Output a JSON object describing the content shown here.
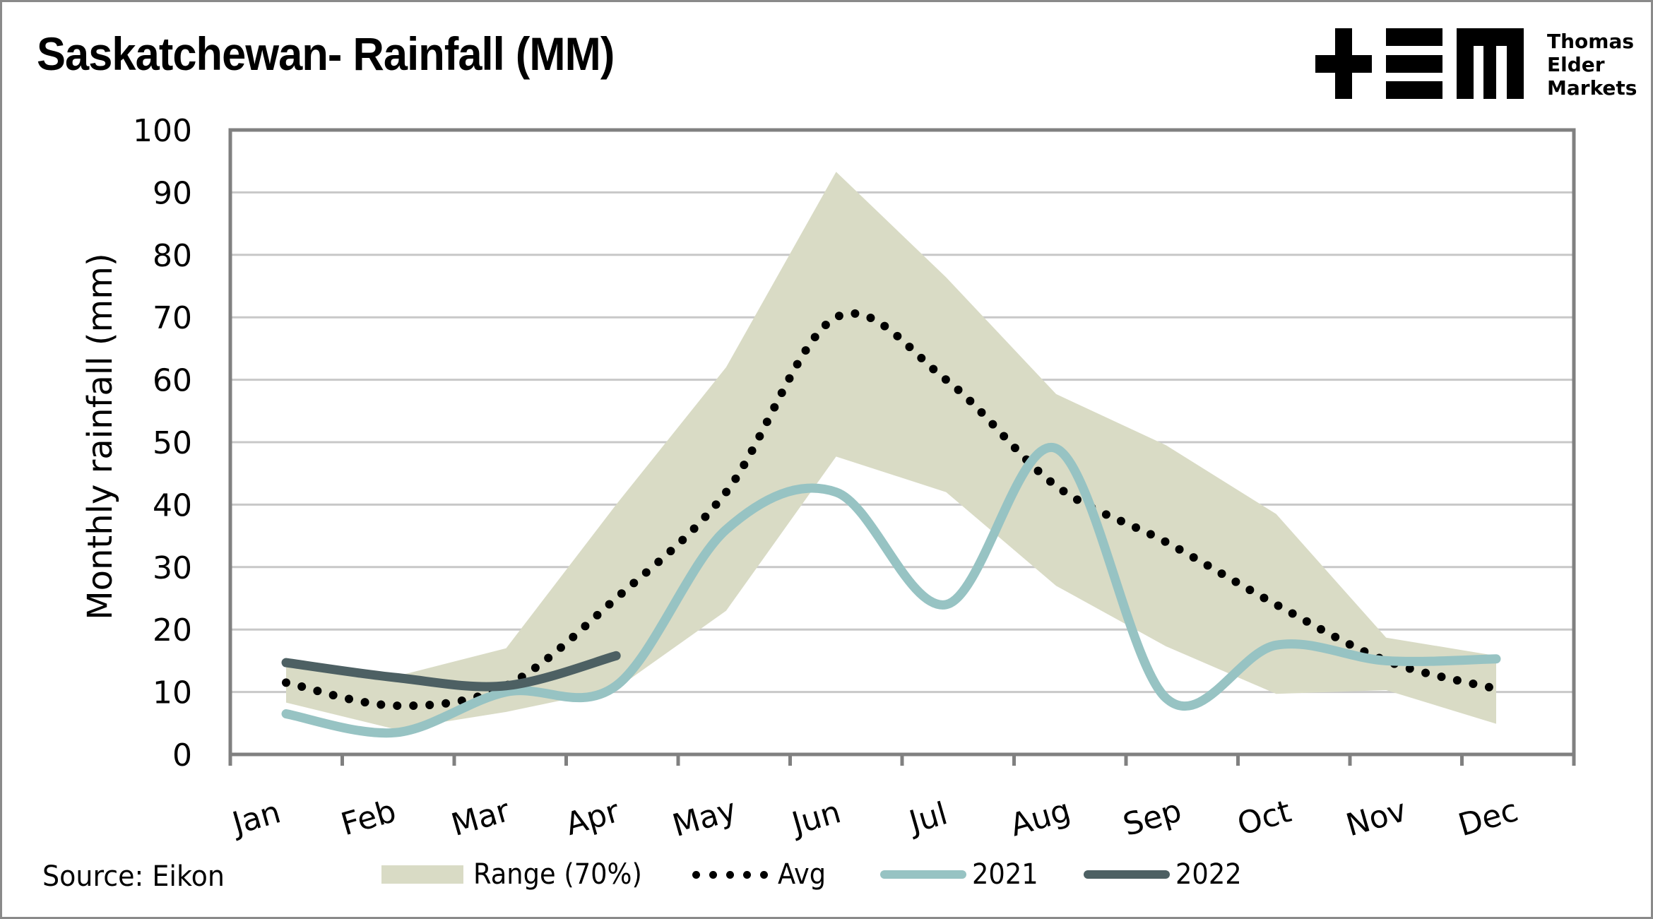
{
  "header": {
    "title": "Saskatchewan- Rainfall (MM)",
    "logo": {
      "icon": "tem-logo-icon",
      "lines": [
        "Thomas",
        "Elder",
        "Markets"
      ]
    }
  },
  "footer": {
    "source": "Source: Eikon"
  },
  "legend": {
    "items": [
      {
        "key": "range",
        "label": "Range (70%)"
      },
      {
        "key": "avg",
        "label": "Avg"
      },
      {
        "key": "y2021",
        "label": "2021"
      },
      {
        "key": "y2022",
        "label": "2022"
      }
    ]
  },
  "colors": {
    "range": "#d9dbc5",
    "avg": "#000000",
    "y2021": "#97c3c3",
    "y2022": "#4d6063",
    "axis": "#808080",
    "grid": "#c8c8c8"
  },
  "chart_data": {
    "type": "line",
    "title": "Saskatchewan- Rainfall (MM)",
    "xlabel": "",
    "ylabel": "Monthly rainfall (mm)",
    "ylim": [
      0,
      100
    ],
    "yticks": [
      0,
      10,
      20,
      30,
      40,
      50,
      60,
      70,
      80,
      90,
      100
    ],
    "grid": true,
    "legend_position": "bottom",
    "categories": [
      "Jan",
      "Feb",
      "Mar",
      "Apr",
      "May",
      "Jun",
      "Jul",
      "Aug",
      "Sep",
      "Oct",
      "Nov",
      "Dec"
    ],
    "range": {
      "name": "Range (70%)",
      "type": "area",
      "upper": [
        14.3,
        12.5,
        17,
        40,
        62,
        93.3,
        76.4,
        57.7,
        49.5,
        38.5,
        18.7,
        15.8
      ],
      "lower": [
        8.3,
        4,
        6.8,
        10.5,
        23,
        47.7,
        42,
        27,
        17.3,
        9.7,
        10.3,
        4.9
      ]
    },
    "series": [
      {
        "name": "Avg",
        "style": "dotted",
        "values": [
          11.5,
          7.8,
          11,
          25,
          42,
          70,
          60,
          43,
          34,
          24,
          15,
          10.5
        ]
      },
      {
        "name": "2021",
        "style": "smooth",
        "values": [
          6.5,
          3.5,
          10,
          11,
          36,
          42,
          24,
          49,
          9,
          17.5,
          15,
          15.3
        ]
      },
      {
        "name": "2022",
        "style": "smooth",
        "values": [
          14.7,
          12.3,
          11,
          15.8,
          null,
          null,
          null,
          null,
          null,
          null,
          null,
          null
        ]
      }
    ]
  }
}
